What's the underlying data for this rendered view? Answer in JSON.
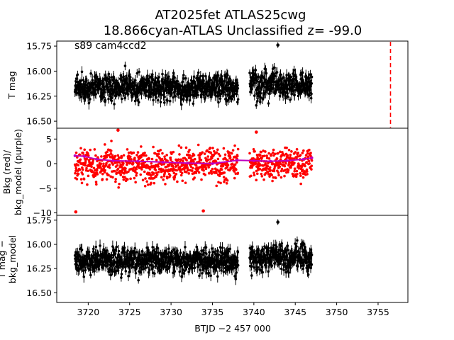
{
  "chart_data": [
    {
      "type": "scatter",
      "panel": "top",
      "title": "AT2025fet  ATLAS25cwg",
      "subtitle": "18.866cyan-ATLAS Unclassified z= -99.0",
      "annotation": "s89 cam4ccd2",
      "ylabel": "T mag",
      "ylim": [
        16.57,
        15.7
      ],
      "yticks": [
        15.75,
        16.0,
        16.25,
        16.5
      ],
      "ytick_labels": [
        "15.75",
        "16.00",
        "16.25",
        "16.50"
      ],
      "xlim": [
        3716.2,
        3758.6
      ],
      "color": "#000000",
      "marker_line": {
        "x": 3756.5,
        "color": "#ff0000",
        "style": "dashed"
      },
      "outlier_points": [
        {
          "x": 3742.9,
          "y": 15.74
        }
      ],
      "segments": [
        {
          "x_start": 3718.4,
          "x_end": 3738.1,
          "center": 16.16,
          "spread": 0.17
        },
        {
          "x_start": 3739.5,
          "x_end": 3747.0,
          "center": 16.14,
          "spread": 0.17
        }
      ]
    },
    {
      "type": "scatter",
      "panel": "middle",
      "ylabel_line1": "Bkg (red)/",
      "ylabel_line2": "bkg_model (purple)",
      "ylim": [
        -10.5,
        7.2
      ],
      "yticks": [
        5,
        0,
        -5,
        -10
      ],
      "ytick_labels": [
        "5",
        "0",
        "−5",
        "−10"
      ],
      "xlim": [
        3716.2,
        3758.6
      ],
      "series": [
        {
          "name": "Bkg",
          "color": "#ff0000",
          "segments": [
            {
              "x_start": 3718.4,
              "x_end": 3738.1,
              "center": -0.3,
              "spread": 4.2
            },
            {
              "x_start": 3739.5,
              "x_end": 3747.0,
              "center": 0.0,
              "spread": 3.8
            }
          ],
          "outlier_points": [
            {
              "x": 3723.6,
              "y": 6.8
            },
            {
              "x": 3733.9,
              "y": -9.6
            },
            {
              "x": 3740.3,
              "y": 6.4
            },
            {
              "x": 3718.5,
              "y": -9.8
            }
          ]
        },
        {
          "name": "bkg_model",
          "color": "#bf00bf",
          "x": [
            3718.4,
            3719.5,
            3721.0,
            3723.0,
            3726.0,
            3729.0,
            3732.0,
            3735.0,
            3738.0,
            3740.0,
            3742.0,
            3744.0,
            3746.0,
            3747.0
          ],
          "values": [
            1.6,
            1.5,
            0.9,
            0.6,
            0.5,
            0.3,
            0.1,
            0.0,
            0.7,
            0.6,
            0.5,
            0.6,
            0.9,
            1.2
          ]
        }
      ]
    },
    {
      "type": "scatter",
      "panel": "bottom",
      "ylabel_line1": "T mag −",
      "ylabel_line2": "bkg_model",
      "ylim": [
        16.6,
        15.7
      ],
      "yticks": [
        15.75,
        16.0,
        16.25,
        16.5
      ],
      "ytick_labels": [
        "15.75",
        "16.00",
        "16.25",
        "16.50"
      ],
      "xlim": [
        3716.2,
        3758.6
      ],
      "xticks": [
        3720,
        3725,
        3730,
        3735,
        3740,
        3745,
        3750,
        3755
      ],
      "xtick_labels": [
        "3720",
        "3725",
        "3730",
        "3735",
        "3740",
        "3745",
        "3750",
        "3755"
      ],
      "xlabel": "BTJD −2 457 000",
      "color": "#000000",
      "outlier_points": [
        {
          "x": 3742.9,
          "y": 15.77
        }
      ],
      "segments": [
        {
          "x_start": 3718.4,
          "x_end": 3738.1,
          "center": 16.17,
          "spread": 0.17
        },
        {
          "x_start": 3739.5,
          "x_end": 3747.0,
          "center": 16.14,
          "spread": 0.17
        }
      ]
    }
  ]
}
